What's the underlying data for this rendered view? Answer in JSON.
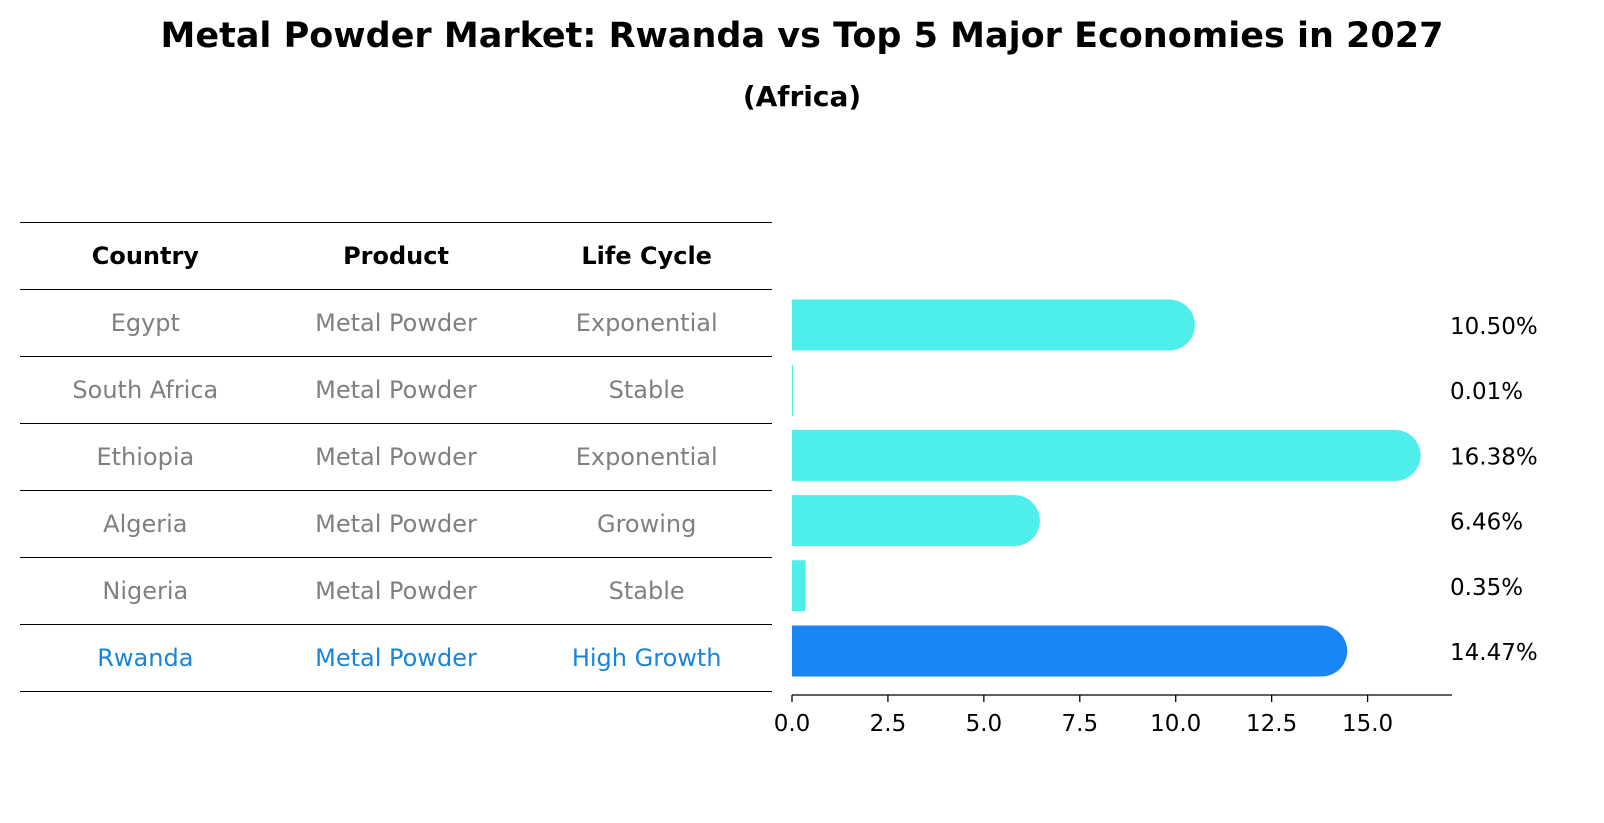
{
  "title": "Metal Powder Market: Rwanda vs Top 5 Major Economies in 2027",
  "subtitle": "(Africa)",
  "table": {
    "headers": [
      "Country",
      "Product",
      "Life Cycle"
    ],
    "rows": [
      {
        "country": "Egypt",
        "product": "Metal Powder",
        "life_cycle": "Exponential"
      },
      {
        "country": "South Africa",
        "product": "Metal Powder",
        "life_cycle": "Stable"
      },
      {
        "country": "Ethiopia",
        "product": "Metal Powder",
        "life_cycle": "Exponential"
      },
      {
        "country": "Algeria",
        "product": "Metal Powder",
        "life_cycle": "Growing"
      },
      {
        "country": "Nigeria",
        "product": "Metal Powder",
        "life_cycle": "Stable"
      },
      {
        "country": "Rwanda",
        "product": "Metal Powder",
        "life_cycle": "High Growth"
      }
    ],
    "highlight_color": "#1a85d6",
    "text_color": "#808080"
  },
  "chart_data": {
    "type": "bar",
    "orientation": "horizontal",
    "categories": [
      "Egypt",
      "South Africa",
      "Ethiopia",
      "Algeria",
      "Nigeria",
      "Rwanda"
    ],
    "values": [
      10.5,
      0.01,
      16.38,
      6.46,
      0.35,
      14.47
    ],
    "value_labels": [
      "10.50%",
      "0.01%",
      "16.38%",
      "6.46%",
      "0.35%",
      "14.47%"
    ],
    "xlim": [
      0,
      17.2
    ],
    "xticks": [
      0.0,
      2.5,
      5.0,
      7.5,
      10.0,
      12.5,
      15.0
    ],
    "xtick_labels": [
      "0.0",
      "2.5",
      "5.0",
      "7.5",
      "10.0",
      "12.5",
      "15.0"
    ],
    "bar_color": "#4eeeea",
    "highlight_color": "#1a85f5",
    "highlight_index": 5,
    "grid": false
  }
}
